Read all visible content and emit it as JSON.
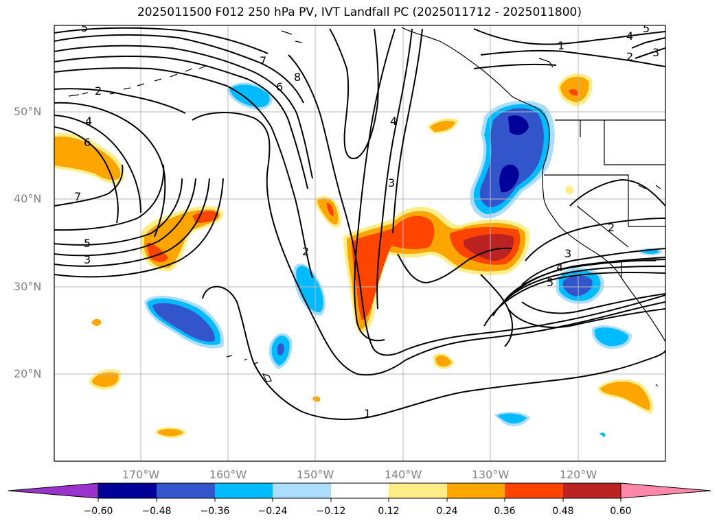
{
  "title": "2025011500 F012 250 hPa PV, IVT Landfall PC (2025011712 - 2025011800)",
  "lat_ticks": [
    "50°N",
    "40°N",
    "30°N",
    "20°N"
  ],
  "lon_ticks": [
    "170°W",
    "160°W",
    "150°W",
    "140°W",
    "130°W",
    "120°W"
  ],
  "colorbar": {
    "ticks": [
      "−0.60",
      "−0.48",
      "−0.36",
      "−0.24",
      "−0.12",
      "0.12",
      "0.24",
      "0.36",
      "0.48",
      "0.60"
    ],
    "colors": [
      "#9933cc",
      "#000099",
      "#3355cc",
      "#00bbff",
      "#aaddff",
      "#ffffff",
      "#ffee88",
      "#ffa500",
      "#ff4400",
      "#bb2222",
      "#ff88aa"
    ],
    "extend": "both"
  },
  "contour_labels": [
    "1",
    "1",
    "2",
    "2",
    "2",
    "2",
    "3",
    "3",
    "3",
    "3",
    "4",
    "4",
    "4",
    "4",
    "5",
    "5",
    "5",
    "5",
    "6",
    "6",
    "7",
    "7",
    "8"
  ],
  "fill_colors": {
    "light_yellow": "#ffee88",
    "orange": "#ffa500",
    "red_orange": "#ff4400",
    "dark_red": "#bb2222",
    "light_blue": "#aaddff",
    "cyan": "#00bbff",
    "blue": "#3355cc",
    "navy": "#000099"
  }
}
